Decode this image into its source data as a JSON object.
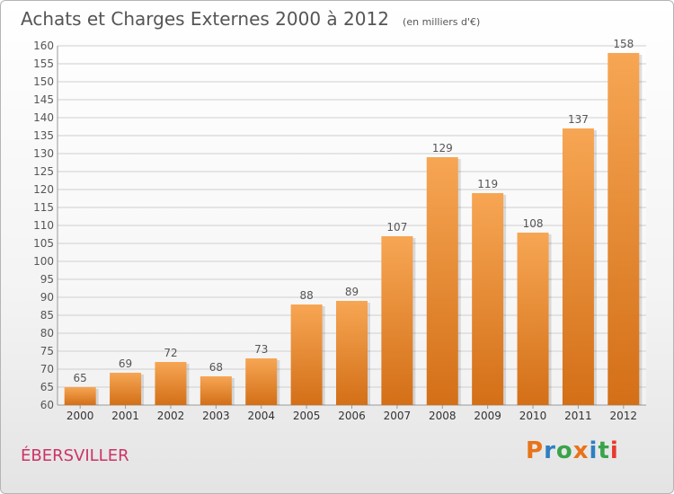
{
  "header": {
    "title": "Achats et Charges Externes 2000 à 2012",
    "unit": "(en milliers d'€)"
  },
  "footer": {
    "place": "ÉBERSVILLER",
    "brand": "Proxiti"
  },
  "colors": {
    "bar_top": "#f7a654",
    "bar_bottom": "#d36f17",
    "grid": "#cfcfcf",
    "text": "#555555",
    "place": "#cc3366"
  },
  "logo_colors": [
    "#e8731a",
    "#2f7fc2",
    "#3aa34a",
    "#e8731a",
    "#2f7fc2",
    "#3aa34a",
    "#e83a2c"
  ],
  "chart_data": {
    "type": "bar",
    "title": "Achats et Charges Externes 2000 à 2012",
    "subtitle": "(en milliers d'€)",
    "xlabel": "",
    "ylabel": "",
    "categories": [
      "2000",
      "2001",
      "2002",
      "2003",
      "2004",
      "2005",
      "2006",
      "2007",
      "2008",
      "2009",
      "2010",
      "2011",
      "2012"
    ],
    "values": [
      65,
      69,
      72,
      68,
      73,
      88,
      89,
      107,
      129,
      119,
      108,
      137,
      158
    ],
    "ylim": [
      60,
      160
    ],
    "yticks": [
      60,
      65,
      70,
      75,
      80,
      85,
      90,
      95,
      100,
      105,
      110,
      115,
      120,
      125,
      130,
      135,
      140,
      145,
      150,
      155,
      160
    ],
    "grid": true,
    "data_labels": true,
    "legend": "none"
  }
}
